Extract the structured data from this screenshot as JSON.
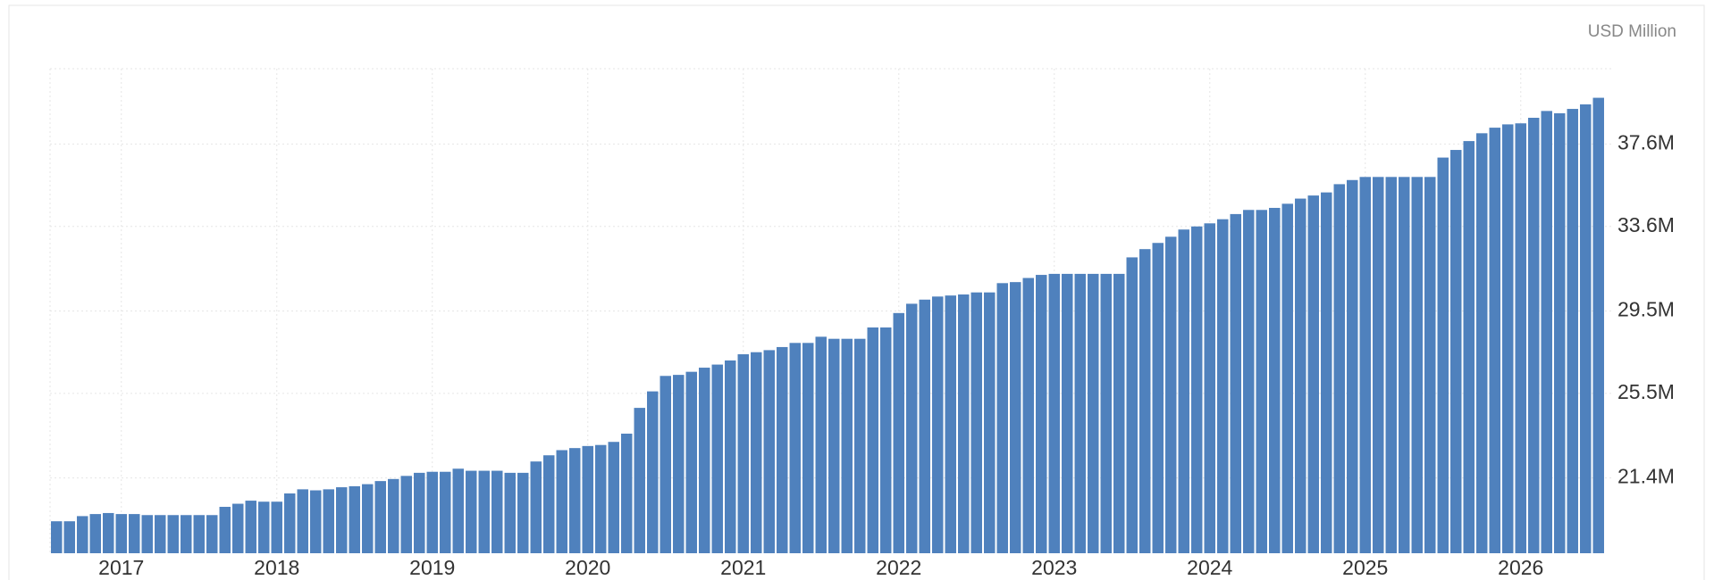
{
  "chart_data": {
    "type": "bar",
    "unit_label": "USD Million",
    "categories": [
      null,
      null,
      null,
      null,
      null,
      "2017",
      null,
      null,
      null,
      null,
      null,
      null,
      null,
      null,
      null,
      null,
      null,
      "2018",
      null,
      null,
      null,
      null,
      null,
      null,
      null,
      null,
      null,
      null,
      null,
      "2019",
      null,
      null,
      null,
      null,
      null,
      null,
      null,
      null,
      null,
      null,
      null,
      "2020",
      null,
      null,
      null,
      null,
      null,
      null,
      null,
      null,
      null,
      null,
      null,
      "2021",
      null,
      null,
      null,
      null,
      null,
      null,
      null,
      null,
      null,
      null,
      null,
      "2022",
      null,
      null,
      null,
      null,
      null,
      null,
      null,
      null,
      null,
      null,
      null,
      "2023",
      null,
      null,
      null,
      null,
      null,
      null,
      null,
      null,
      null,
      null,
      null,
      "2024",
      null,
      null,
      null,
      null,
      null,
      null,
      null,
      null,
      null,
      null,
      null,
      "2025",
      null,
      null,
      null,
      null,
      null,
      null,
      null,
      null,
      null,
      null,
      null,
      "2026",
      null,
      null,
      null,
      null,
      null,
      null
    ],
    "values": [
      19300000,
      19300000,
      19550000,
      19650000,
      19700000,
      19650000,
      19650000,
      19600000,
      19600000,
      19600000,
      19600000,
      19600000,
      19600000,
      20000000,
      20150000,
      20300000,
      20250000,
      20250000,
      20650000,
      20850000,
      20800000,
      20850000,
      20950000,
      21000000,
      21100000,
      21250000,
      21350000,
      21500000,
      21650000,
      21700000,
      21700000,
      21850000,
      21750000,
      21750000,
      21750000,
      21650000,
      21650000,
      22200000,
      22500000,
      22750000,
      22850000,
      22950000,
      23000000,
      23150000,
      23550000,
      24800000,
      25600000,
      26350000,
      26400000,
      26550000,
      26750000,
      26900000,
      27100000,
      27400000,
      27500000,
      27600000,
      27750000,
      27950000,
      27950000,
      28250000,
      28150000,
      28150000,
      28150000,
      28700000,
      28700000,
      29400000,
      29850000,
      30050000,
      30200000,
      30250000,
      30300000,
      30400000,
      30400000,
      30850000,
      30900000,
      31100000,
      31250000,
      31300000,
      31300000,
      31300000,
      31300000,
      31300000,
      31300000,
      32100000,
      32500000,
      32800000,
      33100000,
      33450000,
      33600000,
      33750000,
      33950000,
      34200000,
      34400000,
      34400000,
      34500000,
      34700000,
      34950000,
      35100000,
      35250000,
      35650000,
      35850000,
      36000000,
      36000000,
      36000000,
      36000000,
      36000000,
      36000000,
      36940000,
      37310000,
      37740000,
      38120000,
      38390000,
      38550000,
      38600000,
      38870000,
      39200000,
      39090000,
      39300000,
      39520000,
      39840000
    ],
    "color": "#4f81bd",
    "ylim": [
      17750000,
      41250000
    ],
    "yticks": [
      {
        "value": 21400000,
        "label": "21.4M"
      },
      {
        "value": 25500000,
        "label": "25.5M"
      },
      {
        "value": 29500000,
        "label": "29.5M"
      },
      {
        "value": 33600000,
        "label": "33.6M"
      },
      {
        "value": 37600000,
        "label": "37.6M"
      }
    ],
    "grid": true
  }
}
